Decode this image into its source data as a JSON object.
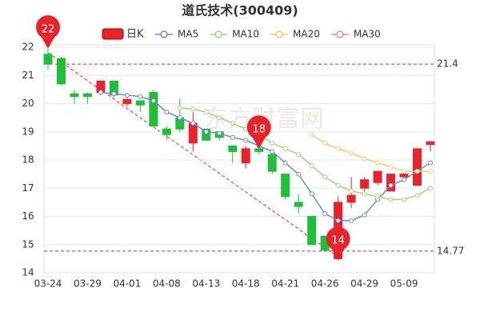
{
  "chart_data": {
    "type": "candlestick",
    "title": "道氏技术(300409)",
    "watermark": "东方财富网",
    "categories": [
      "03-24",
      null,
      null,
      "03-29",
      null,
      null,
      "04-01",
      null,
      null,
      "04-08",
      null,
      null,
      "04-13",
      null,
      null,
      "04-18",
      null,
      null,
      "04-21",
      null,
      null,
      "04-26",
      null,
      null,
      "04-29",
      null,
      null,
      "05-09",
      null,
      null
    ],
    "candle_name": "日K",
    "up_color": "#e8232a",
    "down_color": "#1fbf3a",
    "open": [
      21.75,
      21.6,
      20.35,
      20.35,
      20.4,
      20.8,
      20.0,
      20.1,
      20.4,
      19.1,
      19.5,
      18.6,
      19.1,
      19.0,
      18.5,
      17.9,
      18.4,
      18.2,
      17.5,
      16.5,
      16.0,
      15.3,
      14.5,
      16.5,
      17.0,
      17.2,
      16.9,
      17.4,
      17.1,
      18.55
    ],
    "high": [
      21.95,
      21.65,
      20.5,
      20.4,
      20.8,
      20.8,
      20.2,
      20.1,
      20.5,
      19.2,
      20.2,
      19.7,
      19.1,
      19.0,
      18.5,
      18.5,
      18.4,
      18.2,
      17.5,
      16.8,
      16.0,
      15.3,
      16.7,
      17.4,
      17.4,
      17.6,
      17.5,
      17.5,
      18.4,
      18.65
    ],
    "low": [
      21.2,
      20.65,
      20.0,
      20.0,
      20.3,
      20.2,
      19.9,
      19.7,
      19.2,
      18.7,
      19.0,
      18.3,
      18.7,
      18.7,
      17.9,
      17.7,
      18.2,
      17.5,
      16.6,
      16.1,
      15.0,
      14.75,
      14.45,
      16.3,
      16.8,
      17.1,
      16.9,
      17.4,
      17.1,
      18.3
    ],
    "close": [
      21.4,
      20.7,
      20.25,
      20.25,
      20.8,
      20.3,
      20.15,
      19.95,
      19.2,
      18.9,
      19.1,
      19.3,
      18.7,
      18.8,
      18.3,
      18.4,
      18.3,
      17.6,
      16.7,
      16.35,
      15.0,
      14.8,
      16.5,
      16.75,
      17.3,
      17.6,
      17.5,
      17.5,
      18.4,
      18.65
    ],
    "series": [
      {
        "name": "MA5",
        "color": "#6d8bd0",
        "values": [
          null,
          null,
          null,
          null,
          20.4,
          20.35,
          20.3,
          20.25,
          20.1,
          19.7,
          19.5,
          19.3,
          19.0,
          18.95,
          18.8,
          18.7,
          18.5,
          18.3,
          17.9,
          17.5,
          16.8,
          16.1,
          15.85,
          15.85,
          16.05,
          16.6,
          17.1,
          17.3,
          17.6,
          17.9
        ]
      },
      {
        "name": "MA10",
        "color": "#9fd57a",
        "values": [
          null,
          null,
          null,
          null,
          null,
          null,
          null,
          null,
          null,
          null,
          19.85,
          19.8,
          19.7,
          19.5,
          19.3,
          19.1,
          18.9,
          18.6,
          18.4,
          18.2,
          17.8,
          17.4,
          17.1,
          16.9,
          16.8,
          16.7,
          16.6,
          16.6,
          16.75,
          17.0
        ]
      },
      {
        "name": "MA20",
        "color": "#f5c96a",
        "values": [
          null,
          null,
          null,
          null,
          null,
          null,
          null,
          null,
          null,
          null,
          null,
          null,
          null,
          null,
          null,
          null,
          null,
          null,
          null,
          null,
          18.9,
          18.6,
          18.4,
          18.25,
          18.05,
          17.9,
          17.75,
          17.6,
          17.6,
          17.6
        ]
      },
      {
        "name": "MA30",
        "color": "#f08c8c",
        "values": [
          null,
          null,
          null,
          null,
          null,
          null,
          null,
          null,
          null,
          null,
          null,
          null,
          null,
          null,
          null,
          null,
          null,
          null,
          null,
          null,
          null,
          null,
          null,
          null,
          null,
          null,
          null,
          null,
          null,
          null
        ]
      }
    ],
    "markers": [
      {
        "label": "22",
        "value": 21.95,
        "at": "high"
      },
      {
        "label": "14",
        "value": 14.45,
        "at": "low"
      },
      {
        "label": "18",
        "value": 18.4,
        "at": "high"
      }
    ],
    "hlines": [
      21.4,
      14.77
    ],
    "ylim": [
      14,
      22
    ],
    "yticks": [
      14,
      15,
      16,
      17,
      18,
      19,
      20,
      21,
      22
    ],
    "grid": true
  }
}
